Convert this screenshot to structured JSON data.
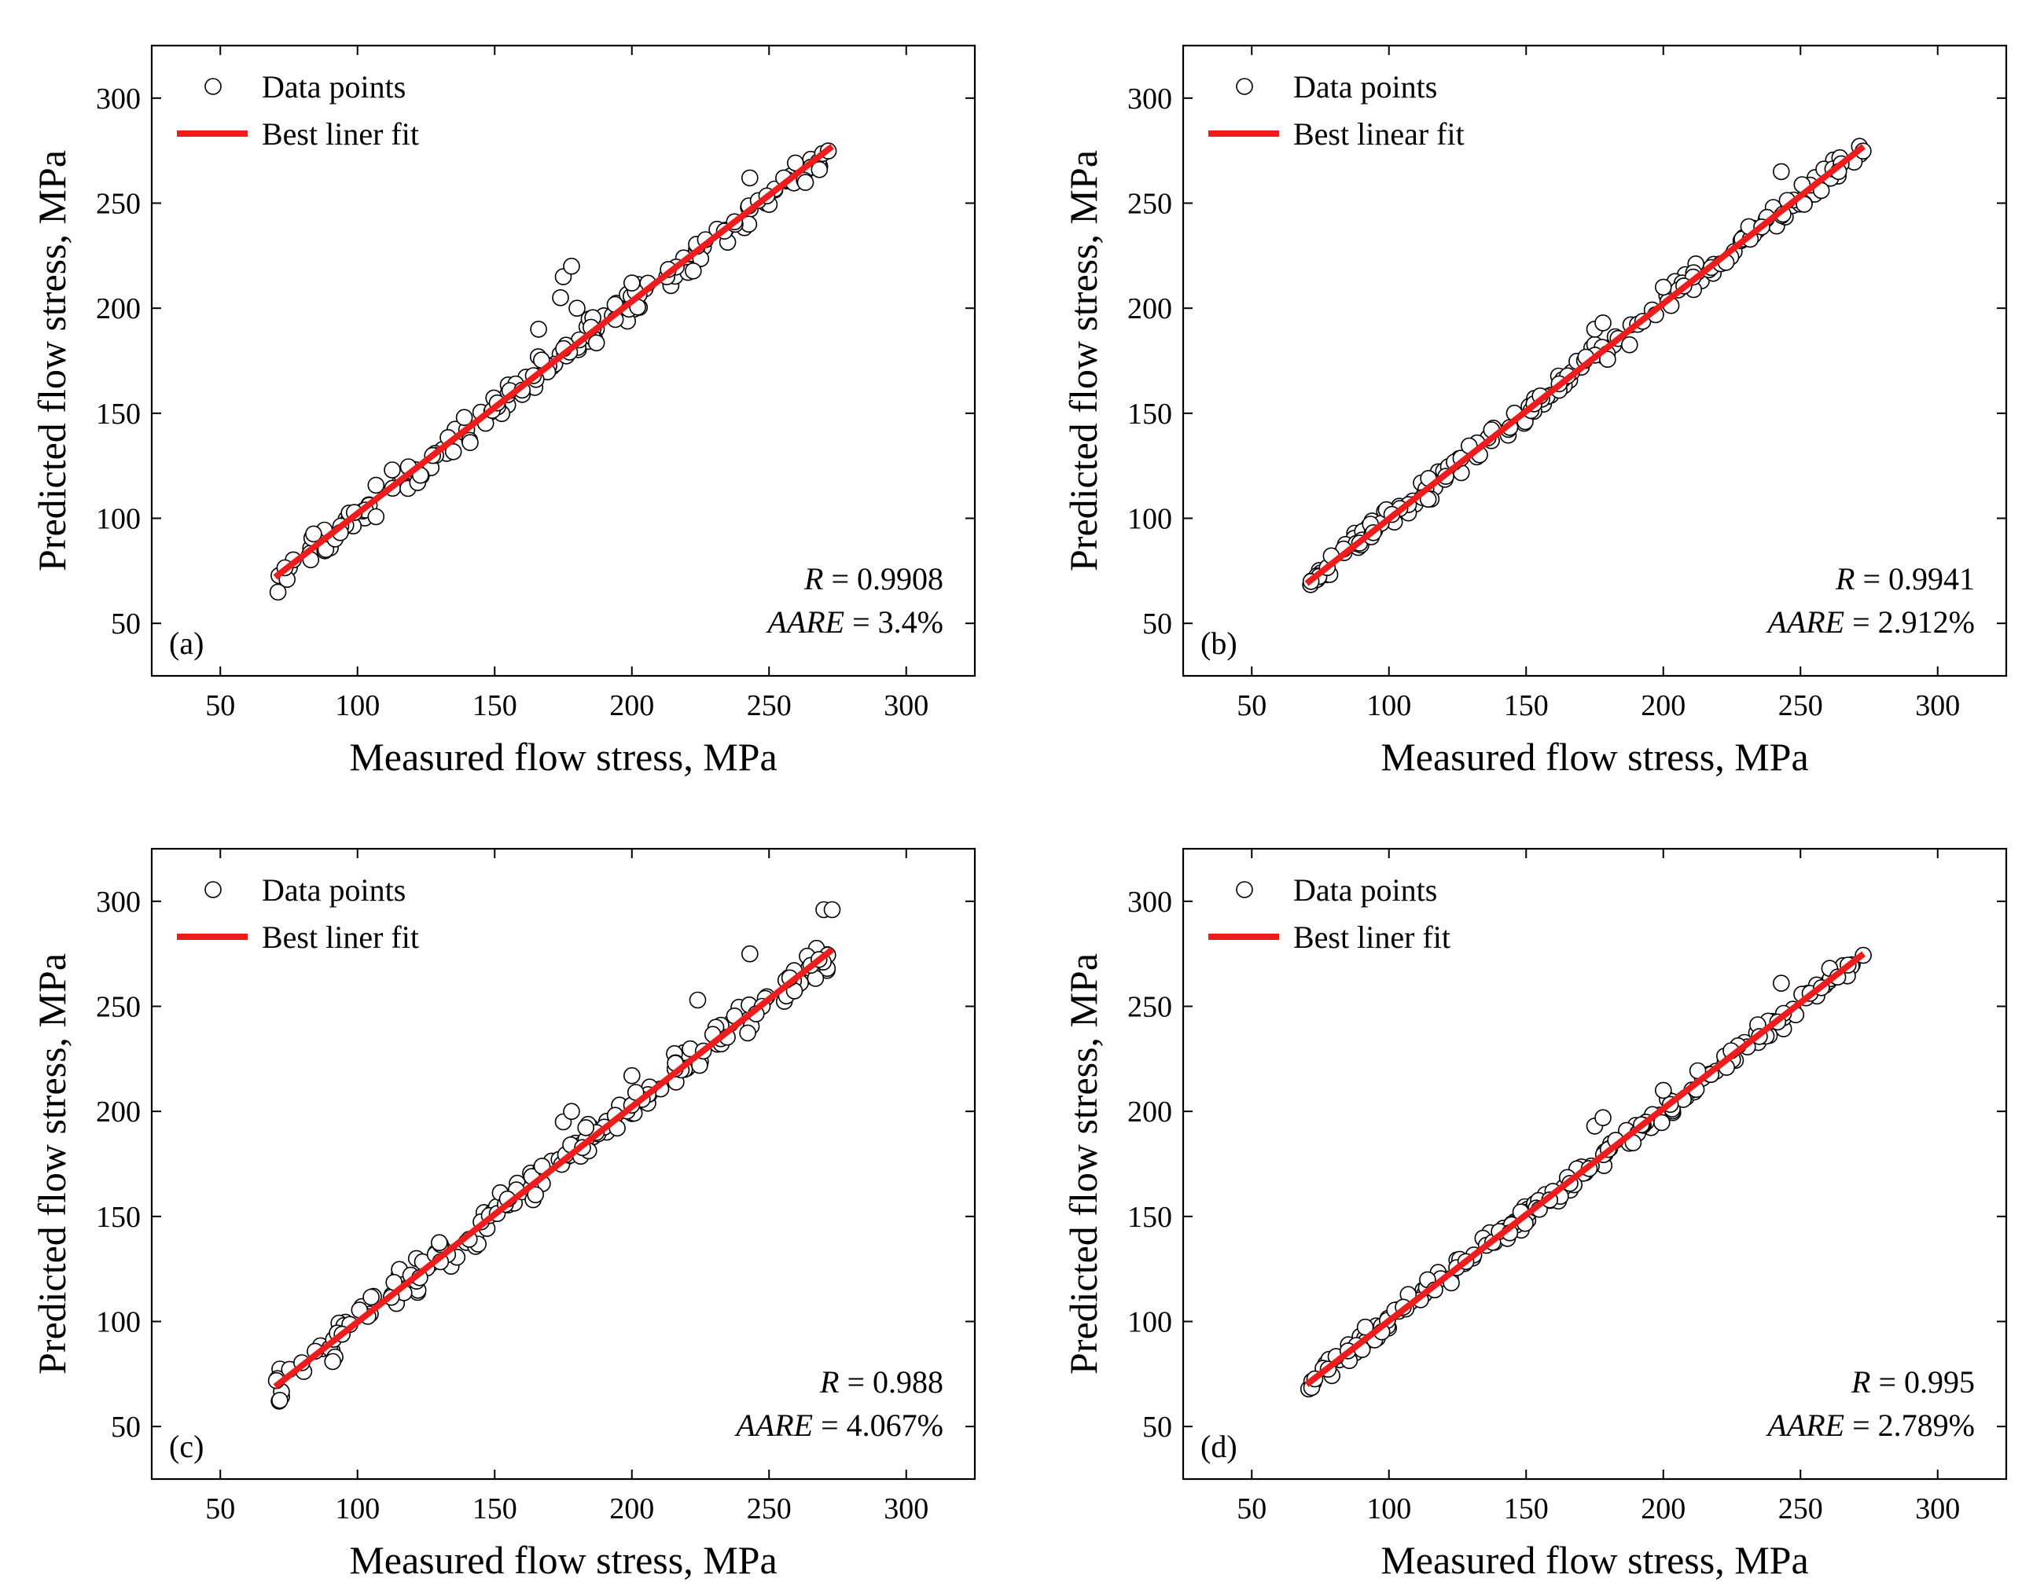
{
  "colors": {
    "fit_line": "#ee1c1c",
    "marker_edge": "#000000",
    "frame": "#000000"
  },
  "chart_data": [
    {
      "type": "scatter",
      "panel_label": "(a)",
      "xlabel": "Measured flow stress, MPa",
      "ylabel": "Predicted flow stress, MPa",
      "xlim": [
        25,
        325
      ],
      "ylim": [
        25,
        325
      ],
      "xticks": [
        "50",
        "100",
        "150",
        "200",
        "250",
        "300"
      ],
      "yticks": [
        "50",
        "100",
        "150",
        "200",
        "250",
        "300"
      ],
      "legend": {
        "position": "top-left",
        "points_label": "Data points",
        "line_label": "Best liner fit"
      },
      "stats": {
        "R_symbol": "R",
        "R_value": "= 0.9908",
        "AARE_symbol": "AARE",
        "AARE_value": "= 3.4%"
      },
      "fit_line": {
        "x": [
          70,
          273
        ],
        "y": [
          72,
          277
        ]
      },
      "outliers": [
        [
          175,
          215
        ],
        [
          178,
          220
        ],
        [
          180,
          200
        ],
        [
          166,
          190
        ],
        [
          174,
          205
        ],
        [
          200,
          212
        ],
        [
          243,
          262
        ]
      ],
      "generator": {
        "seed": 11,
        "spread": 5.5
      }
    },
    {
      "type": "scatter",
      "panel_label": "(b)",
      "xlabel": "Measured flow stress, MPa",
      "ylabel": "Predicted flow stress, MPa",
      "xlim": [
        25,
        325
      ],
      "ylim": [
        25,
        325
      ],
      "xticks": [
        "50",
        "100",
        "150",
        "200",
        "250",
        "300"
      ],
      "yticks": [
        "50",
        "100",
        "150",
        "200",
        "250",
        "300"
      ],
      "legend": {
        "position": "top-left",
        "points_label": "Data points",
        "line_label": "Best linear fit"
      },
      "stats": {
        "R_symbol": "R",
        "R_value": "= 0.9941",
        "AARE_symbol": "AARE",
        "AARE_value": "= 2.912%"
      },
      "fit_line": {
        "x": [
          70,
          273
        ],
        "y": [
          69,
          277
        ]
      },
      "outliers": [
        [
          175,
          190
        ],
        [
          178,
          193
        ],
        [
          200,
          210
        ],
        [
          243,
          265
        ]
      ],
      "generator": {
        "seed": 23,
        "spread": 4.5
      }
    },
    {
      "type": "scatter",
      "panel_label": "(c)",
      "xlabel": "Measured flow stress, MPa",
      "ylabel": "Predicted flow stress, MPa",
      "xlim": [
        25,
        325
      ],
      "ylim": [
        25,
        325
      ],
      "xticks": [
        "50",
        "100",
        "150",
        "200",
        "250",
        "300"
      ],
      "yticks": [
        "50",
        "100",
        "150",
        "200",
        "250",
        "300"
      ],
      "legend": {
        "position": "top-left",
        "points_label": "Data points",
        "line_label": "Best liner fit"
      },
      "stats": {
        "R_symbol": "R",
        "R_value": "= 0.988",
        "AARE_symbol": "AARE",
        "AARE_value": "= 4.067%"
      },
      "fit_line": {
        "x": [
          70,
          273
        ],
        "y": [
          69,
          277
        ]
      },
      "outliers": [
        [
          175,
          195
        ],
        [
          178,
          200
        ],
        [
          200,
          217
        ],
        [
          224,
          253
        ],
        [
          243,
          275
        ],
        [
          270,
          296
        ],
        [
          273,
          296
        ]
      ],
      "generator": {
        "seed": 37,
        "spread": 6.5
      }
    },
    {
      "type": "scatter",
      "panel_label": "(d)",
      "xlabel": "Measured flow stress, MPa",
      "ylabel": "Predicted flow stress, MPa",
      "xlim": [
        25,
        325
      ],
      "ylim": [
        25,
        325
      ],
      "xticks": [
        "50",
        "100",
        "150",
        "200",
        "250",
        "300"
      ],
      "yticks": [
        "50",
        "100",
        "150",
        "200",
        "250",
        "300"
      ],
      "legend": {
        "position": "top-left",
        "points_label": "Data points",
        "line_label": "Best liner fit"
      },
      "stats": {
        "R_symbol": "R",
        "R_value": "= 0.995",
        "AARE_symbol": "AARE",
        "AARE_value": "= 2.789%"
      },
      "fit_line": {
        "x": [
          70,
          273
        ],
        "y": [
          70,
          275
        ]
      },
      "outliers": [
        [
          175,
          193
        ],
        [
          178,
          197
        ],
        [
          200,
          210
        ],
        [
          243,
          261
        ]
      ],
      "generator": {
        "seed": 51,
        "spread": 4.0
      }
    }
  ]
}
